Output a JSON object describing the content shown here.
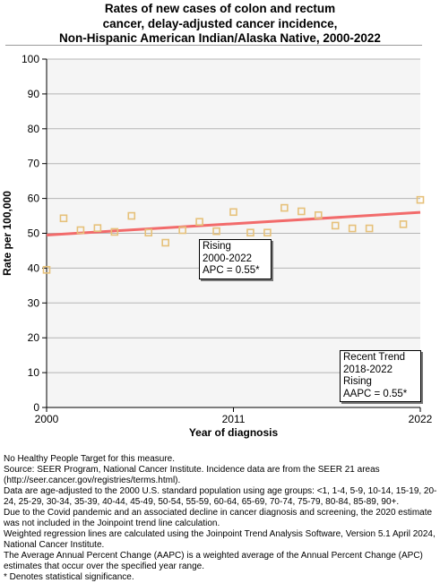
{
  "title": {
    "line1": "Rates of new cases of colon and rectum",
    "line2": "cancer, delay-adjusted cancer incidence,",
    "line3": "Non-Hispanic American Indian/Alaska Native,  2000-2022"
  },
  "chart_data": {
    "type": "scatter",
    "xlabel": "Year of diagnosis",
    "ylabel": "Rate per 100,000",
    "xlim": [
      2000,
      2022
    ],
    "ylim": [
      0,
      100
    ],
    "x_ticks": [
      "2000",
      "2011",
      "2022"
    ],
    "y_ticks": [
      "0",
      "10",
      "20",
      "30",
      "40",
      "50",
      "60",
      "70",
      "80",
      "90",
      "100"
    ],
    "grid": true,
    "series": [
      {
        "type": "scatter",
        "x": [
          2000,
          2001,
          2002,
          2003,
          2004,
          2005,
          2006,
          2007,
          2008,
          2009,
          2010,
          2011,
          2012,
          2013,
          2014,
          2015,
          2016,
          2017,
          2018,
          2019,
          2021,
          2022
        ],
        "y": [
          39.5,
          54.3,
          50.9,
          51.5,
          50.4,
          55.0,
          50.2,
          47.3,
          50.9,
          53.3,
          50.6,
          56.1,
          50.2,
          50.2,
          57.3,
          56.3,
          55.2,
          52.2,
          51.4,
          51.4,
          52.6,
          59.6
        ],
        "markers": "open squares"
      },
      {
        "type": "line",
        "x": [
          2000,
          2022
        ],
        "y": [
          49.5,
          56.0
        ]
      }
    ],
    "annotations": [
      {
        "lines": [
          "Rising",
          "2000-2022",
          "APC =  0.55*"
        ]
      },
      {
        "lines": [
          "Recent Trend",
          "2018-2022",
          "Rising",
          "AAPC =  0.55*"
        ]
      }
    ],
    "colors": {
      "points": "#e6c17a",
      "trend": "#f26b6b",
      "plot_bg": "#f5f5f5",
      "grid": "#b5b5b5"
    }
  },
  "footnotes": [
    "No Healthy People Target for this measure.",
    "Source: SEER Program, National Cancer Institute. Incidence data are from the SEER 21 areas (http://seer.cancer.gov/registries/terms.html).",
    "Data are age-adjusted to the 2000 U.S. standard population using age groups: <1, 1-4, 5-9, 10-14, 15-19, 20-24, 25-29, 30-34, 35-39, 40-44, 45-49, 50-54, 55-59, 60-64, 65-69, 70-74, 75-79, 80-84, 85-89, 90+.",
    "Due to the Covid pandemic and an associated decline in cancer diagnosis and screening, the 2020 estimate was not included in the Joinpoint trend line calculation.",
    "Weighted regression lines are calculated using the Joinpoint Trend Analysis Software, Version 5.1 April 2024, National Cancer Institute.",
    "The Average Annual Percent Change (AAPC) is a weighted average of the Annual Percent Change (APC) estimates that occur over the specified year range.",
    "* Denotes statistical significance."
  ]
}
